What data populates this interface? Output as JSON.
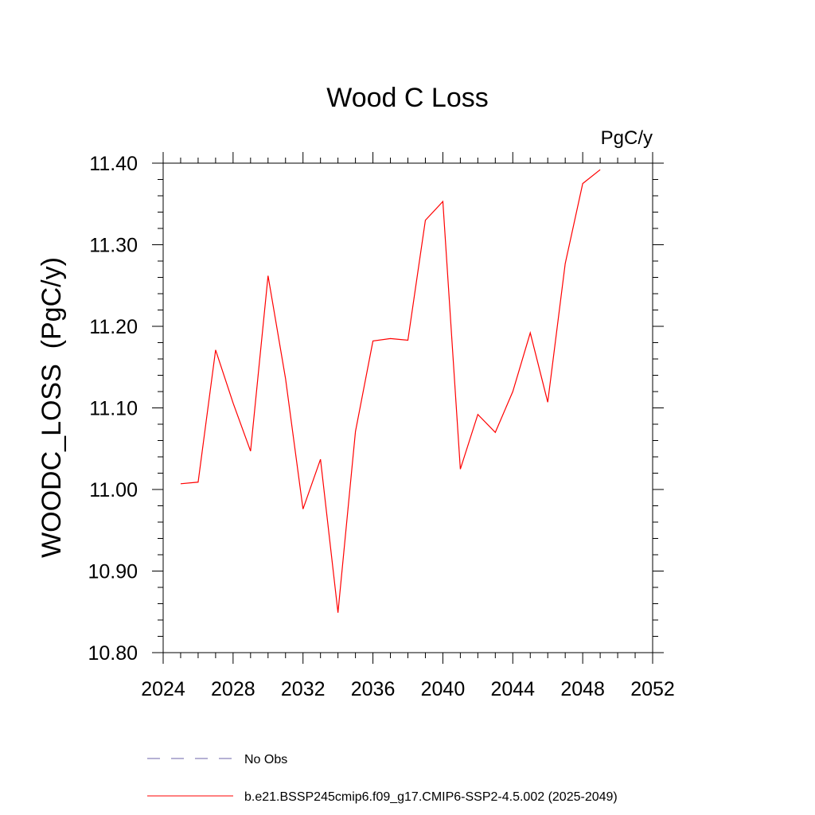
{
  "chart_data": {
    "type": "line",
    "title": "Wood C Loss",
    "units_label": "PgC/y",
    "ylabel": "WOODC_LOSS  (PgC/y)",
    "xlabel": "",
    "xlim": [
      2024,
      2052
    ],
    "ylim": [
      10.8,
      11.4
    ],
    "x_ticks": [
      2024,
      2028,
      2032,
      2036,
      2040,
      2044,
      2048,
      2052
    ],
    "x_tick_labels": [
      "2024",
      "2028",
      "2032",
      "2036",
      "2040",
      "2044",
      "2048",
      "2052"
    ],
    "y_ticks": [
      10.8,
      10.9,
      11.0,
      11.1,
      11.2,
      11.3,
      11.4
    ],
    "y_tick_labels": [
      "10.80",
      "10.90",
      "11.00",
      "11.10",
      "11.20",
      "11.30",
      "11.40"
    ],
    "grid": false,
    "legend_position": "bottom",
    "series": [
      {
        "name": "b.e21.BSSP245cmip6.f09_g17.CMIP6-SSP2-4.5.002 (2025-2049)",
        "color": "#ff0000",
        "style": "solid",
        "x": [
          2025,
          2026,
          2027,
          2028,
          2029,
          2030,
          2031,
          2032,
          2033,
          2034,
          2035,
          2036,
          2037,
          2038,
          2039,
          2040,
          2041,
          2042,
          2043,
          2044,
          2045,
          2046,
          2047,
          2048,
          2049
        ],
        "values": [
          11.007,
          11.009,
          11.171,
          11.106,
          11.047,
          11.262,
          11.136,
          10.976,
          11.037,
          10.849,
          11.071,
          11.182,
          11.185,
          11.183,
          11.33,
          11.353,
          11.025,
          11.092,
          11.07,
          11.12,
          11.192,
          11.107,
          11.277,
          11.375,
          11.392
        ]
      }
    ],
    "legend": [
      {
        "label": "No Obs",
        "color": "#6b63a8",
        "style": "dashed"
      },
      {
        "label": "b.e21.BSSP245cmip6.f09_g17.CMIP6-SSP2-4.5.002 (2025-2049)",
        "color": "#ff0000",
        "style": "solid"
      }
    ]
  }
}
